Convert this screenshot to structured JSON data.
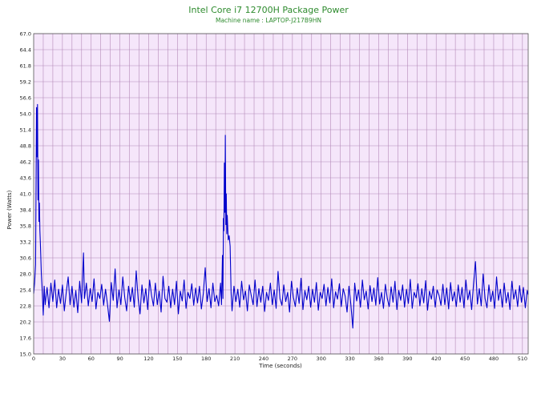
{
  "colors": {
    "background": "#ffffff",
    "plot_background": "#f5e6fa",
    "grid": "#b48ab8",
    "series": "#0000cc",
    "title": "#2e8b2e"
  },
  "chart_data": {
    "type": "line",
    "title": "Intel Core i7 12700H Package Power",
    "subtitle": "Machine name : LAPTOP-J217B9HN",
    "xlabel": "Time (seconds)",
    "ylabel": "Power (Watts)",
    "xlim": [
      0,
      516
    ],
    "ylim": [
      15.0,
      67.0
    ],
    "grid": true,
    "x_ticks": [
      "0",
      "30",
      "60",
      "90",
      "120",
      "150",
      "180",
      "210",
      "240",
      "270",
      "300",
      "330",
      "360",
      "390",
      "420",
      "450",
      "480",
      "510"
    ],
    "y_ticks": [
      "15.0",
      "17.6",
      "20.2",
      "22.8",
      "25.4",
      "28.0",
      "30.6",
      "33.2",
      "35.8",
      "38.4",
      "41.0",
      "43.6",
      "46.2",
      "48.8",
      "51.4",
      "54.0",
      "56.6",
      "59.2",
      "61.8",
      "64.4",
      "67.0"
    ],
    "series": [
      {
        "values": [
          [
            0,
            24.8
          ],
          [
            1,
            26.6
          ],
          [
            2,
            29.5
          ],
          [
            3,
            55.0
          ],
          [
            3.5,
            47.0
          ],
          [
            4,
            55.5
          ],
          [
            4.5,
            40.0
          ],
          [
            5,
            46.5
          ],
          [
            5.5,
            36.5
          ],
          [
            6,
            39.5
          ],
          [
            6.5,
            35.0
          ],
          [
            7,
            33.0
          ],
          [
            8,
            28.0
          ],
          [
            9,
            25.0
          ],
          [
            10,
            21.3
          ],
          [
            11,
            26.0
          ],
          [
            12,
            23.0
          ],
          [
            14,
            25.8
          ],
          [
            16,
            22.5
          ],
          [
            18,
            26.5
          ],
          [
            20,
            23.5
          ],
          [
            22,
            27.0
          ],
          [
            24,
            22.5
          ],
          [
            26,
            25.5
          ],
          [
            28,
            23.2
          ],
          [
            30,
            26.2
          ],
          [
            32,
            22.0
          ],
          [
            34,
            25.0
          ],
          [
            36,
            27.5
          ],
          [
            38,
            23.0
          ],
          [
            40,
            26.0
          ],
          [
            42,
            22.6
          ],
          [
            44,
            25.3
          ],
          [
            46,
            21.7
          ],
          [
            48,
            26.8
          ],
          [
            50,
            23.3
          ],
          [
            52,
            31.4
          ],
          [
            53,
            24.0
          ],
          [
            55,
            26.5
          ],
          [
            57,
            22.8
          ],
          [
            59,
            25.6
          ],
          [
            61,
            23.5
          ],
          [
            63,
            27.2
          ],
          [
            65,
            22.3
          ],
          [
            67,
            25.0
          ],
          [
            69,
            24.0
          ],
          [
            71,
            26.3
          ],
          [
            73,
            22.9
          ],
          [
            75,
            25.5
          ],
          [
            77,
            23.1
          ],
          [
            79,
            20.3
          ],
          [
            81,
            26.6
          ],
          [
            83,
            23.7
          ],
          [
            85,
            28.8
          ],
          [
            87,
            22.5
          ],
          [
            89,
            25.4
          ],
          [
            91,
            23.0
          ],
          [
            93,
            27.5
          ],
          [
            95,
            24.2
          ],
          [
            97,
            22.0
          ],
          [
            99,
            26.0
          ],
          [
            101,
            23.5
          ],
          [
            103,
            25.8
          ],
          [
            105,
            22.6
          ],
          [
            107,
            28.5
          ],
          [
            109,
            24.0
          ],
          [
            111,
            21.5
          ],
          [
            113,
            26.2
          ],
          [
            115,
            23.3
          ],
          [
            117,
            25.6
          ],
          [
            119,
            22.2
          ],
          [
            121,
            27.0
          ],
          [
            123,
            24.5
          ],
          [
            125,
            22.8
          ],
          [
            127,
            26.5
          ],
          [
            129,
            23.0
          ],
          [
            131,
            25.2
          ],
          [
            133,
            21.8
          ],
          [
            135,
            27.6
          ],
          [
            137,
            24.0
          ],
          [
            139,
            23.4
          ],
          [
            141,
            26.0
          ],
          [
            143,
            22.5
          ],
          [
            145,
            25.5
          ],
          [
            147,
            23.0
          ],
          [
            149,
            26.8
          ],
          [
            151,
            21.5
          ],
          [
            153,
            25.2
          ],
          [
            155,
            23.6
          ],
          [
            157,
            27.0
          ],
          [
            159,
            22.4
          ],
          [
            161,
            25.0
          ],
          [
            163,
            24.0
          ],
          [
            165,
            26.4
          ],
          [
            167,
            22.9
          ],
          [
            169,
            25.7
          ],
          [
            171,
            23.3
          ],
          [
            173,
            26.0
          ],
          [
            175,
            22.3
          ],
          [
            177,
            24.8
          ],
          [
            179,
            29.0
          ],
          [
            181,
            23.5
          ],
          [
            183,
            25.6
          ],
          [
            185,
            22.5
          ],
          [
            187,
            26.5
          ],
          [
            189,
            23.5
          ],
          [
            191,
            24.5
          ],
          [
            193,
            22.8
          ],
          [
            195,
            26.5
          ],
          [
            196,
            23.0
          ],
          [
            197,
            31.0
          ],
          [
            197.5,
            24.0
          ],
          [
            198,
            37.0
          ],
          [
            198.5,
            35.0
          ],
          [
            199,
            46.0
          ],
          [
            199.5,
            38.0
          ],
          [
            200,
            50.5
          ],
          [
            200.5,
            36.0
          ],
          [
            201,
            41.0
          ],
          [
            201.5,
            34.5
          ],
          [
            202,
            37.5
          ],
          [
            203,
            33.5
          ],
          [
            204,
            34.2
          ],
          [
            205,
            32.5
          ],
          [
            206,
            25.0
          ],
          [
            207,
            22.0
          ],
          [
            209,
            26.0
          ],
          [
            211,
            23.5
          ],
          [
            213,
            25.5
          ],
          [
            215,
            22.6
          ],
          [
            217,
            26.8
          ],
          [
            219,
            23.8
          ],
          [
            221,
            25.2
          ],
          [
            223,
            22.0
          ],
          [
            225,
            26.2
          ],
          [
            227,
            24.5
          ],
          [
            229,
            23.0
          ],
          [
            231,
            27.0
          ],
          [
            233,
            22.7
          ],
          [
            235,
            25.6
          ],
          [
            237,
            23.4
          ],
          [
            239,
            26.0
          ],
          [
            241,
            21.9
          ],
          [
            243,
            25.0
          ],
          [
            245,
            23.7
          ],
          [
            247,
            26.5
          ],
          [
            249,
            23.0
          ],
          [
            251,
            25.4
          ],
          [
            253,
            22.4
          ],
          [
            255,
            28.4
          ],
          [
            257,
            24.0
          ],
          [
            259,
            22.9
          ],
          [
            261,
            26.2
          ],
          [
            263,
            23.5
          ],
          [
            265,
            25.0
          ],
          [
            267,
            21.8
          ],
          [
            269,
            26.8
          ],
          [
            271,
            24.2
          ],
          [
            273,
            22.7
          ],
          [
            275,
            25.7
          ],
          [
            277,
            23.2
          ],
          [
            279,
            27.3
          ],
          [
            281,
            22.2
          ],
          [
            283,
            25.3
          ],
          [
            285,
            23.8
          ],
          [
            287,
            26.0
          ],
          [
            289,
            22.6
          ],
          [
            291,
            25.5
          ],
          [
            293,
            23.4
          ],
          [
            295,
            26.6
          ],
          [
            297,
            22.1
          ],
          [
            299,
            25.0
          ],
          [
            301,
            24.0
          ],
          [
            303,
            26.3
          ],
          [
            305,
            22.8
          ],
          [
            307,
            25.8
          ],
          [
            309,
            23.3
          ],
          [
            311,
            27.2
          ],
          [
            313,
            22.5
          ],
          [
            315,
            25.1
          ],
          [
            317,
            23.9
          ],
          [
            319,
            26.4
          ],
          [
            321,
            22.7
          ],
          [
            323,
            25.6
          ],
          [
            325,
            24.4
          ],
          [
            327,
            21.8
          ],
          [
            329,
            26.0
          ],
          [
            331,
            23.0
          ],
          [
            333,
            19.2
          ],
          [
            335,
            26.5
          ],
          [
            337,
            23.6
          ],
          [
            339,
            25.4
          ],
          [
            341,
            22.6
          ],
          [
            343,
            27.0
          ],
          [
            345,
            23.8
          ],
          [
            347,
            25.2
          ],
          [
            349,
            22.3
          ],
          [
            351,
            26.1
          ],
          [
            353,
            23.5
          ],
          [
            355,
            25.7
          ],
          [
            357,
            22.9
          ],
          [
            359,
            27.4
          ],
          [
            361,
            23.1
          ],
          [
            363,
            25.0
          ],
          [
            365,
            22.4
          ],
          [
            367,
            26.3
          ],
          [
            369,
            24.0
          ],
          [
            371,
            22.7
          ],
          [
            373,
            25.9
          ],
          [
            375,
            23.4
          ],
          [
            377,
            26.8
          ],
          [
            379,
            22.2
          ],
          [
            381,
            25.3
          ],
          [
            383,
            23.7
          ],
          [
            385,
            26.2
          ],
          [
            387,
            22.6
          ],
          [
            389,
            25.5
          ],
          [
            391,
            23.2
          ],
          [
            393,
            27.1
          ],
          [
            395,
            22.4
          ],
          [
            397,
            25.0
          ],
          [
            399,
            24.1
          ],
          [
            401,
            26.4
          ],
          [
            403,
            22.8
          ],
          [
            405,
            25.6
          ],
          [
            407,
            23.3
          ],
          [
            409,
            26.9
          ],
          [
            411,
            22.1
          ],
          [
            413,
            25.2
          ],
          [
            415,
            23.9
          ],
          [
            417,
            26.0
          ],
          [
            419,
            22.6
          ],
          [
            421,
            25.4
          ],
          [
            423,
            24.5
          ],
          [
            425,
            22.9
          ],
          [
            427,
            26.3
          ],
          [
            429,
            23.0
          ],
          [
            431,
            25.7
          ],
          [
            433,
            22.3
          ],
          [
            435,
            26.6
          ],
          [
            437,
            23.6
          ],
          [
            439,
            25.1
          ],
          [
            441,
            22.7
          ],
          [
            443,
            26.2
          ],
          [
            445,
            23.4
          ],
          [
            447,
            25.8
          ],
          [
            449,
            22.5
          ],
          [
            451,
            27.0
          ],
          [
            453,
            23.8
          ],
          [
            455,
            25.3
          ],
          [
            457,
            22.2
          ],
          [
            459,
            26.4
          ],
          [
            461,
            30.0
          ],
          [
            463,
            23.1
          ],
          [
            465,
            25.6
          ],
          [
            467,
            22.8
          ],
          [
            469,
            28.0
          ],
          [
            471,
            24.0
          ],
          [
            473,
            22.5
          ],
          [
            475,
            26.2
          ],
          [
            477,
            23.5
          ],
          [
            479,
            25.2
          ],
          [
            481,
            22.4
          ],
          [
            483,
            27.5
          ],
          [
            485,
            23.7
          ],
          [
            487,
            25.5
          ],
          [
            489,
            22.6
          ],
          [
            491,
            26.5
          ],
          [
            493,
            23.3
          ],
          [
            495,
            25.0
          ],
          [
            497,
            22.2
          ],
          [
            499,
            26.8
          ],
          [
            501,
            23.9
          ],
          [
            503,
            25.4
          ],
          [
            505,
            22.7
          ],
          [
            507,
            26.1
          ],
          [
            509,
            23.4
          ],
          [
            511,
            25.8
          ],
          [
            513,
            22.5
          ],
          [
            515,
            25.3
          ],
          [
            516,
            24.6
          ]
        ]
      }
    ]
  }
}
